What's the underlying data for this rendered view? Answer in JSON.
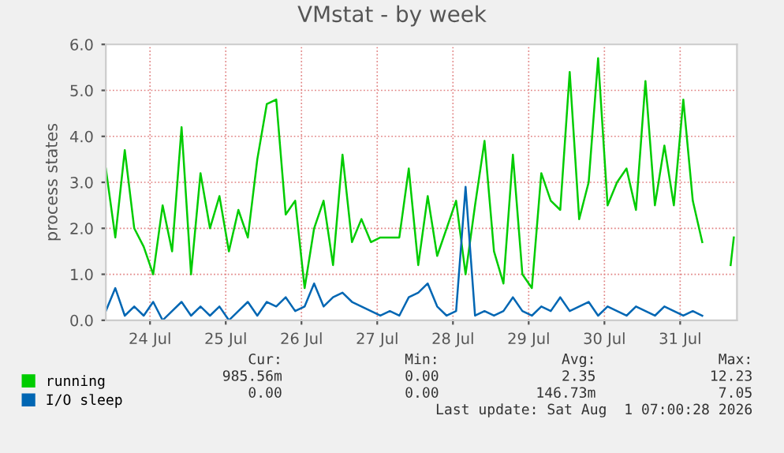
{
  "chart_data": {
    "type": "line",
    "title": "VMstat - by week",
    "ylabel": "process states",
    "x": [
      "2026-07-23T22:00",
      "2026-07-24T01:00",
      "2026-07-24T04:00",
      "2026-07-24T07:00",
      "2026-07-24T10:00",
      "2026-07-24T13:00",
      "2026-07-24T16:00",
      "2026-07-24T19:00",
      "2026-07-24T22:00",
      "2026-07-25T01:00",
      "2026-07-25T04:00",
      "2026-07-25T07:00",
      "2026-07-25T10:00",
      "2026-07-25T13:00",
      "2026-07-25T16:00",
      "2026-07-25T19:00",
      "2026-07-25T22:00",
      "2026-07-26T01:00",
      "2026-07-26T04:00",
      "2026-07-26T07:00",
      "2026-07-26T10:00",
      "2026-07-26T13:00",
      "2026-07-26T16:00",
      "2026-07-26T19:00",
      "2026-07-26T22:00",
      "2026-07-27T01:00",
      "2026-07-27T04:00",
      "2026-07-27T07:00",
      "2026-07-27T10:00",
      "2026-07-27T13:00",
      "2026-07-27T16:00",
      "2026-07-27T19:00",
      "2026-07-27T22:00",
      "2026-07-28T01:00",
      "2026-07-28T04:00",
      "2026-07-28T07:00",
      "2026-07-28T10:00",
      "2026-07-28T13:00",
      "2026-07-28T16:00",
      "2026-07-28T19:00",
      "2026-07-28T22:00",
      "2026-07-29T01:00",
      "2026-07-29T04:00",
      "2026-07-29T07:00",
      "2026-07-29T10:00",
      "2026-07-29T13:00",
      "2026-07-29T16:00",
      "2026-07-29T19:00",
      "2026-07-29T22:00",
      "2026-07-30T01:00",
      "2026-07-30T04:00",
      "2026-07-30T07:00",
      "2026-07-30T10:00",
      "2026-07-30T13:00",
      "2026-07-30T16:00",
      "2026-07-30T19:00",
      "2026-07-30T22:00",
      "2026-07-31T01:00",
      "2026-07-31T04:00",
      "2026-07-31T07:00",
      "2026-07-31T10:00",
      "2026-07-31T13:00",
      "2026-07-31T16:00",
      "2026-07-31T19:00",
      "2026-07-31T22:00",
      "2026-08-01T01:00",
      "2026-08-01T04:00",
      "2026-08-01T05:00"
    ],
    "series": [
      {
        "name": "running",
        "color": "#00cc00",
        "values": [
          3.3,
          1.8,
          3.7,
          2.0,
          1.6,
          1.0,
          2.5,
          1.5,
          4.2,
          1.0,
          3.2,
          2.0,
          2.7,
          1.5,
          2.4,
          1.8,
          3.5,
          4.7,
          4.8,
          2.3,
          2.6,
          0.7,
          2.0,
          2.6,
          1.2,
          3.6,
          1.7,
          2.2,
          1.7,
          1.8,
          1.8,
          1.8,
          3.3,
          1.2,
          2.7,
          1.4,
          2.0,
          2.6,
          1.0,
          2.5,
          3.9,
          1.5,
          0.8,
          3.6,
          1.0,
          0.7,
          3.2,
          2.6,
          2.4,
          5.4,
          2.2,
          3.0,
          5.7,
          2.5,
          3.0,
          3.3,
          2.4,
          5.2,
          2.5,
          3.8,
          2.5,
          4.8,
          2.6,
          1.7,
          null,
          null,
          1.2,
          1.8
        ]
      },
      {
        "name": "I/O sleep",
        "color": "#0066b3",
        "values": [
          0.2,
          0.7,
          0.1,
          0.3,
          0.1,
          0.4,
          0,
          0.2,
          0.4,
          0.1,
          0.3,
          0.1,
          0.3,
          0,
          0.2,
          0.4,
          0.1,
          0.4,
          0.3,
          0.5,
          0.2,
          0.3,
          0.8,
          0.3,
          0.5,
          0.6,
          0.4,
          0.3,
          0.2,
          0.1,
          0.2,
          0.1,
          0.5,
          0.6,
          0.8,
          0.3,
          0.1,
          0.2,
          2.9,
          0.1,
          0.2,
          0.1,
          0.2,
          0.5,
          0.2,
          0.1,
          0.3,
          0.2,
          0.5,
          0.2,
          0.3,
          0.4,
          0.1,
          0.3,
          0.2,
          0.1,
          0.3,
          0.2,
          0.1,
          0.3,
          0.2,
          0.1,
          0.2,
          0.1,
          null,
          null,
          null,
          null
        ]
      }
    ],
    "xlim": [
      "2026-07-23T22:00",
      "2026-08-01T06:00"
    ],
    "xticks": [
      {
        "value": "2026-07-24T12:00",
        "label": "24 Jul"
      },
      {
        "value": "2026-07-25T12:00",
        "label": "25 Jul"
      },
      {
        "value": "2026-07-26T12:00",
        "label": "26 Jul"
      },
      {
        "value": "2026-07-27T12:00",
        "label": "27 Jul"
      },
      {
        "value": "2026-07-28T12:00",
        "label": "28 Jul"
      },
      {
        "value": "2026-07-29T12:00",
        "label": "29 Jul"
      },
      {
        "value": "2026-07-30T12:00",
        "label": "30 Jul"
      },
      {
        "value": "2026-07-31T12:00",
        "label": "31 Jul"
      }
    ],
    "ylim": [
      0,
      6.0
    ],
    "yticks": [
      {
        "value": 0,
        "label": "0.0"
      },
      {
        "value": 1,
        "label": "1.0"
      },
      {
        "value": 2,
        "label": "2.0"
      },
      {
        "value": 3,
        "label": "3.0"
      },
      {
        "value": 4,
        "label": "4.0"
      },
      {
        "value": 5,
        "label": "5.0"
      },
      {
        "value": 6,
        "label": "6.0"
      }
    ],
    "grid": true,
    "legend": "bottom",
    "annotations": [
      "Cur:",
      "Min:",
      "Avg:",
      "Max:",
      "985.56m",
      "0.00",
      "2.35",
      "12.23",
      "0.00",
      "0.00",
      "146.73m",
      "7.05",
      "Last update: Sat Aug  1 07:00:28 2026"
    ]
  }
}
